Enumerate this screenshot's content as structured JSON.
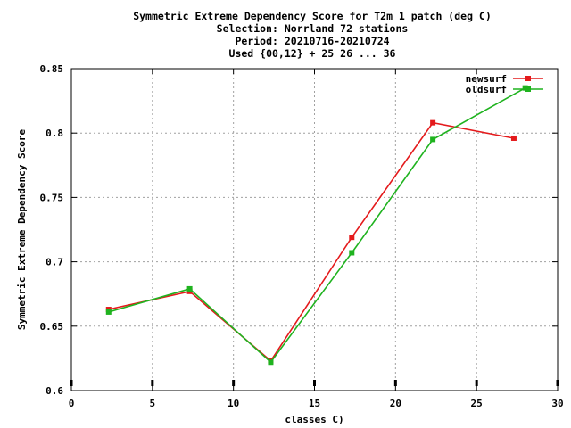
{
  "chart_data": {
    "type": "line",
    "title_lines": [
      "Symmetric Extreme Dependency Score  for T2m 1 patch (deg C)",
      "Selection: Norrland     72 stations",
      "Period: 20210716-20210724",
      "Used {00,12} + 25 26 ... 36"
    ],
    "xlabel": "classes C)",
    "ylabel": "Symmetric Extreme Dependency Score",
    "xlim": [
      0,
      30
    ],
    "ylim": [
      0.6,
      0.85
    ],
    "xticks": [
      0,
      5,
      10,
      15,
      20,
      25,
      30
    ],
    "yticks": [
      0.6,
      0.65,
      0.7,
      0.75,
      0.8,
      0.85
    ],
    "ytick_labels": [
      "0.6",
      "0.65",
      "0.7",
      "0.75",
      "0.8",
      "0.85"
    ],
    "grid": true,
    "legend_position": "top-right",
    "series": [
      {
        "name": "newsurf",
        "color": "#e41a1c",
        "x": [
          2.3,
          7.3,
          12.3,
          17.3,
          22.3,
          27.3
        ],
        "y": [
          0.663,
          0.677,
          0.623,
          0.719,
          0.808,
          0.796
        ]
      },
      {
        "name": "oldsurf",
        "color": "#1fb31f",
        "x": [
          2.3,
          7.3,
          12.3,
          17.3,
          22.3,
          28.0
        ],
        "y": [
          0.661,
          0.679,
          0.622,
          0.707,
          0.795,
          0.835
        ]
      }
    ]
  }
}
